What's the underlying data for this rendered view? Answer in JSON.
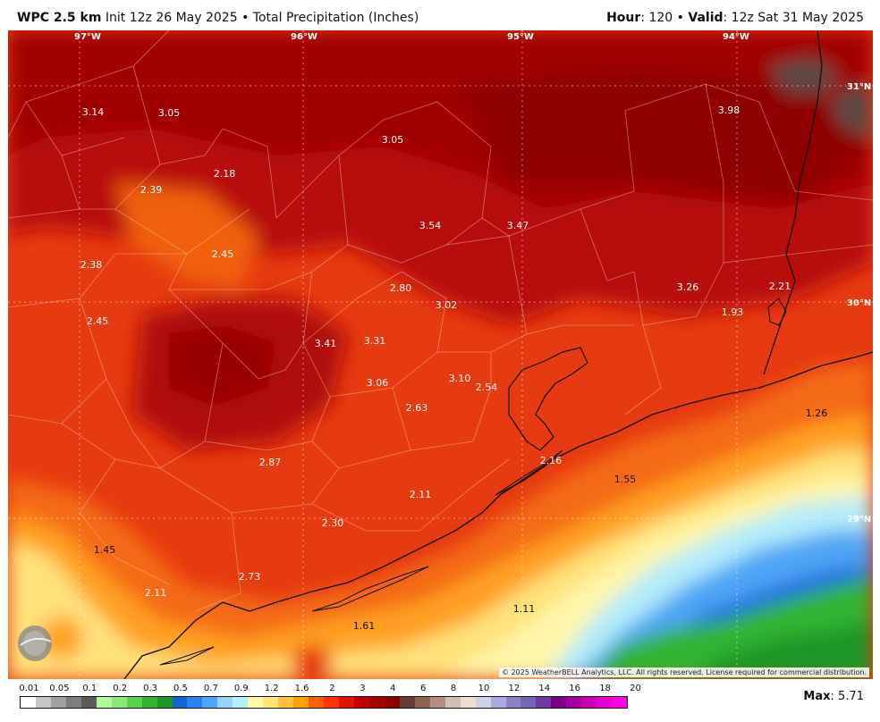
{
  "header": {
    "model": "WPC 2.5 km",
    "init": "Init 12z 26 May 2025",
    "separator": "•",
    "product": "Total Precipitation (Inches)",
    "hour_label": "Hour",
    "hour_value": ": 120",
    "valid_label": "Valid",
    "valid_value": ": 12z Sat 31 May 2025"
  },
  "map": {
    "lon_labels": [
      "97°W",
      "96°W",
      "95°W",
      "94°W"
    ],
    "lat_labels": [
      "31°N",
      "30°N",
      "29°N"
    ],
    "values": [
      {
        "text": "3.14",
        "dark": false
      },
      {
        "text": "3.05",
        "dark": false
      },
      {
        "text": "3.05",
        "dark": false
      },
      {
        "text": "3.98",
        "dark": false
      },
      {
        "text": "2.18",
        "dark": false
      },
      {
        "text": "2.39",
        "dark": false
      },
      {
        "text": "3.54",
        "dark": false
      },
      {
        "text": "3.47",
        "dark": false
      },
      {
        "text": "2.38",
        "dark": false
      },
      {
        "text": "2.45",
        "dark": false
      },
      {
        "text": "2.80",
        "dark": false
      },
      {
        "text": "3.26",
        "dark": false
      },
      {
        "text": "2.21",
        "dark": false
      },
      {
        "text": "3.02",
        "dark": false
      },
      {
        "text": "1.93",
        "dark": false
      },
      {
        "text": "2.45",
        "dark": false
      },
      {
        "text": "3.41",
        "dark": false
      },
      {
        "text": "3.31",
        "dark": false
      },
      {
        "text": "3.06",
        "dark": false
      },
      {
        "text": "3.10",
        "dark": false
      },
      {
        "text": "2.54",
        "dark": false
      },
      {
        "text": "2.63",
        "dark": false
      },
      {
        "text": "1.26",
        "dark": true
      },
      {
        "text": "2.87",
        "dark": false
      },
      {
        "text": "2.16",
        "dark": false
      },
      {
        "text": "1.55",
        "dark": true
      },
      {
        "text": "2.11",
        "dark": false
      },
      {
        "text": "2.30",
        "dark": false
      },
      {
        "text": "1.45",
        "dark": true
      },
      {
        "text": "2.73",
        "dark": false
      },
      {
        "text": "2.11",
        "dark": false
      },
      {
        "text": "1.11",
        "dark": true
      },
      {
        "text": "1.61",
        "dark": true
      }
    ],
    "copyright": "© 2025 WeatherBELL Analytics, LLC. All rights reserved. License required for commercial distribution.",
    "logo_text": "WeatherBELL"
  },
  "legend": {
    "labels": [
      "0.01",
      "0.05",
      "0.1",
      "0.2",
      "0.3",
      "0.5",
      "0.7",
      "0.9",
      "1.2",
      "1.6",
      "2",
      "3",
      "4",
      "6",
      "8",
      "10",
      "12",
      "14",
      "16",
      "18",
      "20"
    ],
    "colors": [
      "#ffffff",
      "#c8c8c8",
      "#a0a0a0",
      "#7d7d7d",
      "#5a5a5a",
      "#b4f5a0",
      "#8ce678",
      "#5ad250",
      "#32b432",
      "#1e9628",
      "#1464d2",
      "#2882f0",
      "#50a5f5",
      "#96d2fa",
      "#b4f0fa",
      "#fffaaa",
      "#ffe878",
      "#ffc03c",
      "#ffa000",
      "#ff6000",
      "#ff3200",
      "#e11400",
      "#c00000",
      "#a50000",
      "#8c0000",
      "#643c32",
      "#8c6450",
      "#b48c82",
      "#d2beb4",
      "#f0dcd2",
      "#d2d2e6",
      "#aaaae1",
      "#8c82c8",
      "#7864b4",
      "#6e3ca0",
      "#780082",
      "#a000a0",
      "#c800b4",
      "#e600d2",
      "#ff00e6"
    ]
  },
  "max": {
    "label": "Max",
    "value": ": 5.71"
  }
}
